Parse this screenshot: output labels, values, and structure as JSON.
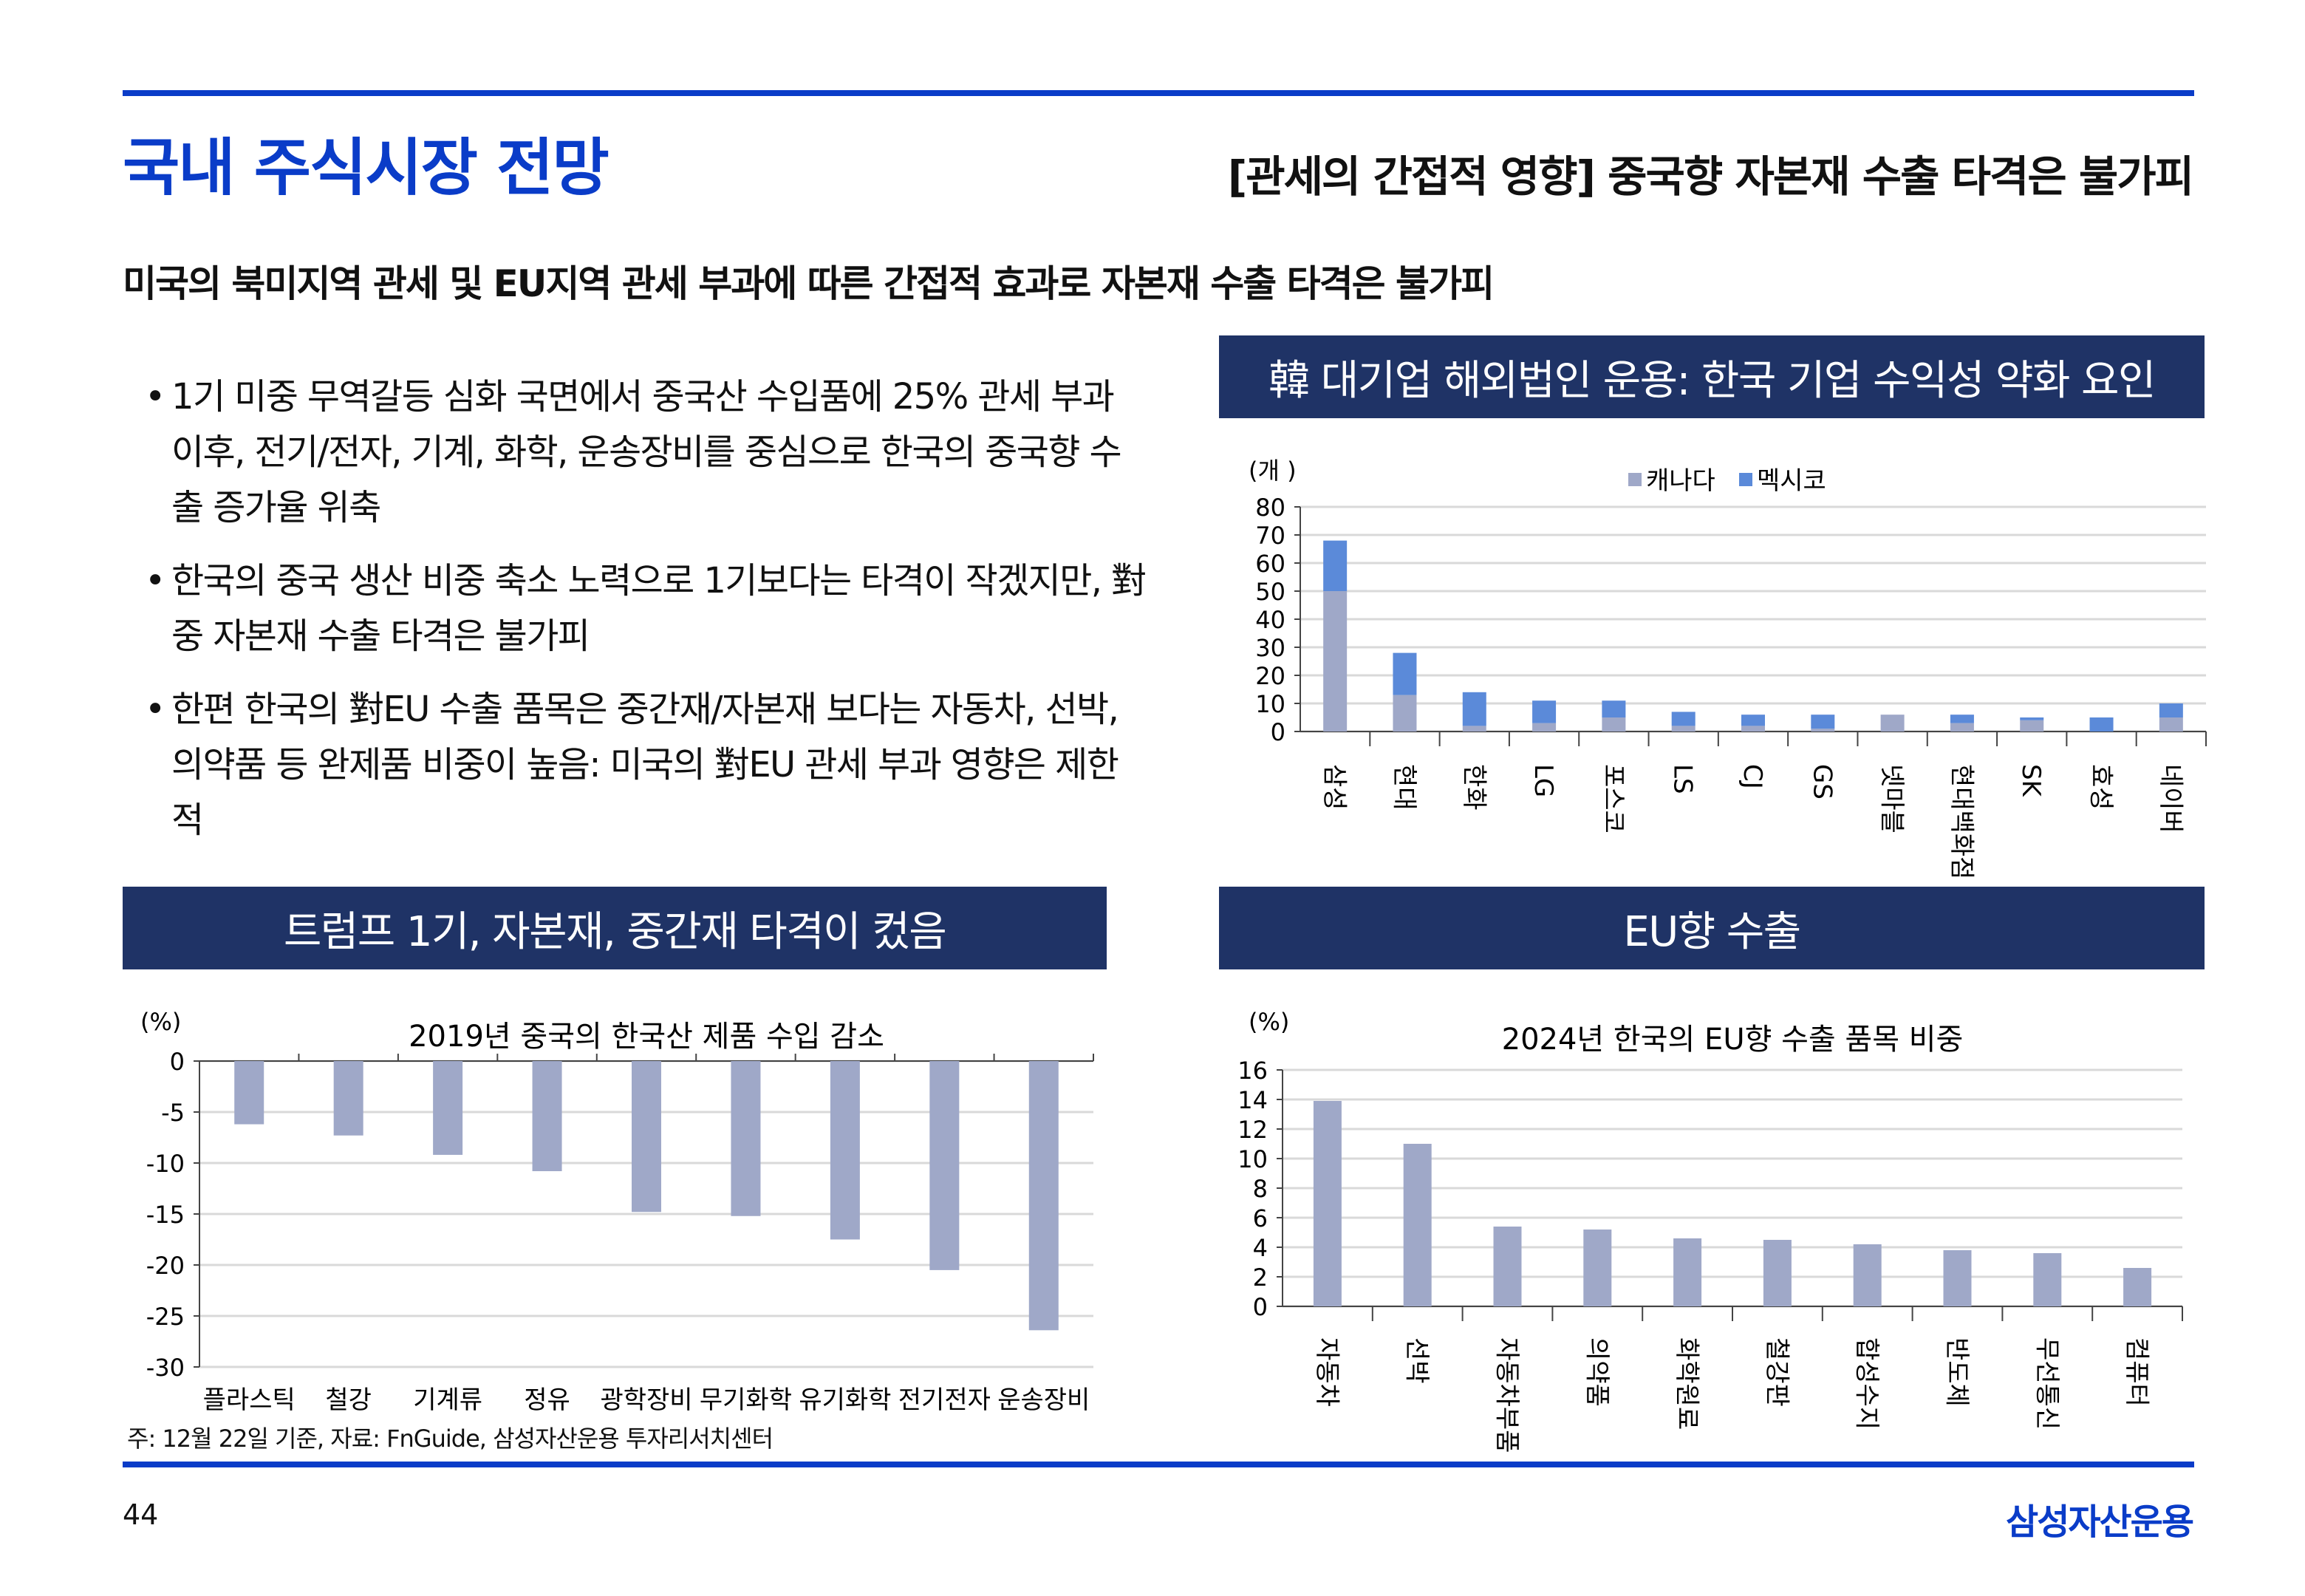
{
  "header": {
    "title": "국내 주식시장 전망",
    "right_title": "[관세의 간접적 영향] 중국향 자본재 수출 타격은 불가피"
  },
  "subtitle": "미국의 북미지역 관세 및 EU지역 관세 부과에 따른 간접적 효과로 자본재 수출 타격은 불가피",
  "bullets": [
    "1기 미중 무역갈등 심화 국면에서 중국산 수입품에 25% 관세 부과 이후, 전기/전자, 기계, 화학, 운송장비를 중심으로 한국의 중국향 수출 증가율 위축",
    "한국의 중국 생산 비중 축소 노력으로 1기보다는 타격이 작겠지만, 對중 자본재 수출 타격은 불가피",
    "한편 한국의 對EU 수출 품목은 중간재/자본재 보다는 자동차, 선박, 의약품 등 완제품 비중이 높음: 미국의 對EU 관세 부과 영향은 제한적"
  ],
  "panels": {
    "top_right": "韓 대기업 해외법인 운용: 한국 기업 수익성 약화 요인",
    "bottom_left": "트럼프 1기, 자본재, 중간재 타격이 컸음",
    "bottom_right": "EU향 수출"
  },
  "footnote": "주: 12월 22일 기준, 자료: FnGuide, 삼성자산운용 투자리서치센터",
  "footer": {
    "page_number": "44",
    "logo": "삼성자산운용"
  },
  "colors": {
    "brand": "#0a3cc8",
    "panel": "#1f3366",
    "canada": "#9fa8c8",
    "mexico": "#5b8ad9",
    "bar": "#9fa8c8",
    "grid": "#d9d9d9"
  },
  "chart_data": [
    {
      "type": "bar",
      "stacked": true,
      "title": "",
      "unit": "(개 )",
      "ylim": [
        0,
        80
      ],
      "yticks": [
        0,
        10,
        20,
        30,
        40,
        50,
        60,
        70,
        80
      ],
      "categories": [
        "삼성",
        "현대",
        "한화",
        "LG",
        "포스코",
        "LS",
        "CJ",
        "GS",
        "넷마블",
        "현대백화점",
        "SK",
        "효성",
        "네이버"
      ],
      "series": [
        {
          "name": "캐나다",
          "values": [
            50,
            13,
            2,
            3,
            5,
            2,
            2,
            1,
            6,
            3,
            4,
            0,
            5
          ]
        },
        {
          "name": "멕시코",
          "values": [
            18,
            15,
            12,
            8,
            6,
            5,
            4,
            5,
            0,
            3,
            1,
            5,
            5
          ]
        }
      ],
      "legend": "top-center",
      "grid": true
    },
    {
      "type": "bar",
      "title": "2019년 중국의 한국산 제품 수입 감소",
      "unit": "(%)",
      "ylim": [
        -30,
        0
      ],
      "yticks": [
        0,
        -5,
        -10,
        -15,
        -20,
        -25,
        -30
      ],
      "categories": [
        "플라스틱",
        "철강",
        "기계류",
        "정유",
        "광학장비",
        "무기화학",
        "유기화학",
        "전기전자",
        "운송장비"
      ],
      "values": [
        -6.2,
        -7.3,
        -9.2,
        -10.8,
        -14.8,
        -15.2,
        -17.5,
        -20.5,
        -26.4
      ],
      "grid": true
    },
    {
      "type": "bar",
      "title": "2024년 한국의 EU향 수출 품목 비중",
      "unit": "(%)",
      "ylim": [
        0,
        16
      ],
      "yticks": [
        0,
        2,
        4,
        6,
        8,
        10,
        12,
        14,
        16
      ],
      "categories": [
        "자동차",
        "선박",
        "자동차 부품",
        "의약품",
        "화학원료",
        "철강판",
        "합성수지",
        "반도체",
        "무선통신",
        "컴퓨터"
      ],
      "values": [
        13.9,
        11.0,
        5.4,
        5.2,
        4.6,
        4.5,
        4.2,
        3.8,
        3.6,
        2.6
      ],
      "grid": true
    }
  ]
}
